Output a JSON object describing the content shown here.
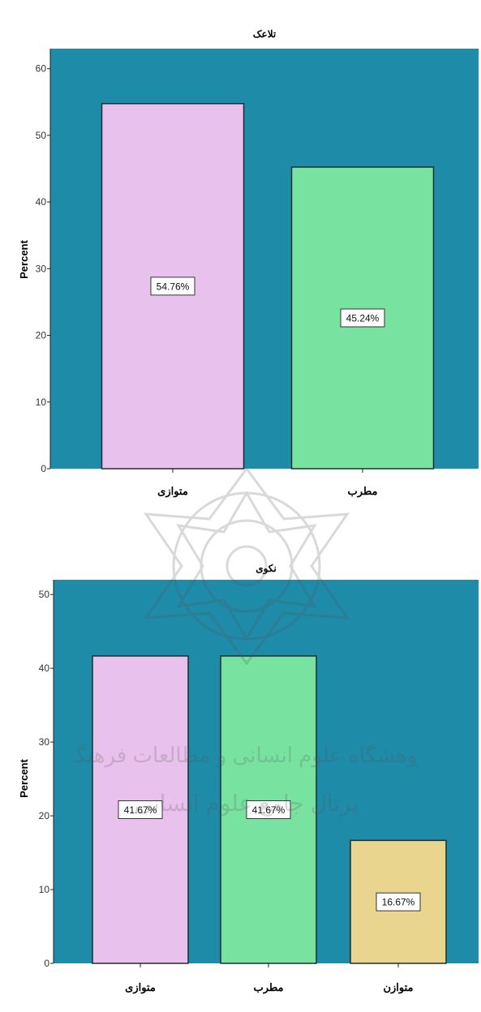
{
  "chart_data": [
    {
      "type": "bar",
      "title": "تلاعک",
      "ylabel": "Percent",
      "categories": [
        "متوازی",
        "مطرب"
      ],
      "values": [
        54.76,
        45.24
      ],
      "data_labels": [
        "54.76%",
        "45.24%"
      ],
      "ylim": [
        0,
        63
      ],
      "yticks": [
        0,
        10,
        20,
        30,
        40,
        50,
        60
      ],
      "colors": [
        "#e8c2ec",
        "#78e3a0"
      ],
      "background_color": "#1e8ba8",
      "grid": false,
      "legend": "none"
    },
    {
      "type": "bar",
      "title": "نکوی",
      "ylabel": "Percent",
      "categories": [
        "متوازی",
        "مطرب",
        "متوازن"
      ],
      "values": [
        41.67,
        41.67,
        16.67
      ],
      "data_labels": [
        "41.67%",
        "41.67%",
        "16.67%"
      ],
      "ylim": [
        0,
        52
      ],
      "yticks": [
        0,
        10,
        20,
        30,
        40,
        50
      ],
      "colors": [
        "#e8c2ec",
        "#78e3a0",
        "#e9d58d"
      ],
      "background_color": "#1e8ba8",
      "grid": false,
      "legend": "none"
    }
  ],
  "watermark": {
    "line1": "پژوهشگاه علوم انسانی و مطالعات فرهنگی",
    "line2": "پرتال جامع علوم انسانی",
    "emblem_icon": "rosette-emblem-icon",
    "color": "#666666"
  }
}
